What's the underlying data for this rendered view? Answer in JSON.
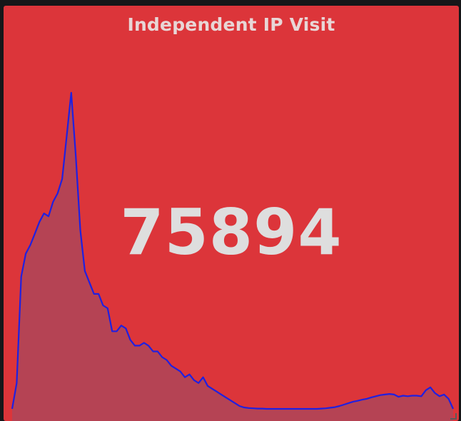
{
  "panel": {
    "title": "Independent IP Visit",
    "value": "75894"
  },
  "colors": {
    "background": "#161719",
    "panel": "#dc353a",
    "sparkline_line": "#2020e0",
    "sparkline_fill": "#b04558",
    "value_text": "#dedede"
  },
  "chart_data": {
    "type": "area",
    "series": [
      {
        "values": [
          0,
          9,
          46,
          54,
          57,
          61,
          65,
          68,
          67,
          72,
          75,
          80,
          95,
          110,
          88,
          62,
          48,
          44,
          40,
          40,
          36,
          35,
          27,
          27,
          29,
          28,
          24,
          22,
          22,
          23,
          22,
          20,
          20,
          18,
          17,
          15,
          14,
          13,
          11,
          12,
          10,
          9,
          11,
          8,
          7,
          6,
          5,
          4,
          3,
          2,
          1,
          0.5,
          0.3,
          0.2,
          0.1,
          0.1,
          0,
          0,
          0,
          0,
          0,
          0,
          0,
          0,
          0,
          0,
          0,
          0,
          0.1,
          0.2,
          0.4,
          0.6,
          1,
          1.5,
          2,
          2.5,
          2.8,
          3.2,
          3.5,
          4,
          4.4,
          4.8,
          5,
          5.2,
          5,
          4.2,
          4.6,
          4.4,
          4.6,
          4.6,
          4.4,
          6.5,
          7.5,
          5.5,
          4.4,
          5,
          3.5,
          0
        ]
      }
    ]
  }
}
